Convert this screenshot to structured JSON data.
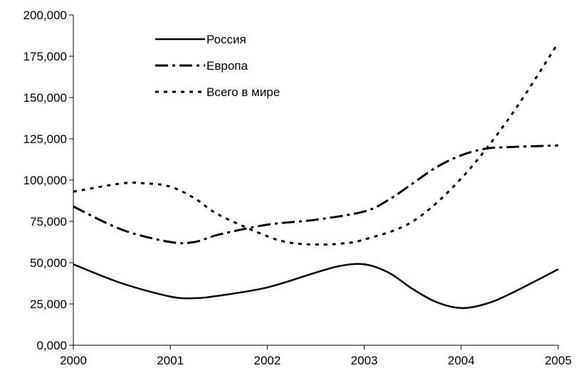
{
  "chart_data": {
    "type": "line",
    "x_ticks": [
      "2000",
      "2001",
      "2002",
      "2003",
      "2004",
      "2005"
    ],
    "y_ticks": [
      "0,000",
      "25,000",
      "50,000",
      "75,000",
      "100,000",
      "125,000",
      "150,000",
      "175,000",
      "200,000"
    ],
    "ylim": [
      0,
      200000
    ],
    "xlim": [
      2000,
      2005
    ],
    "grid": false,
    "legend_position": "top-left",
    "series": [
      {
        "name": "Россия",
        "style": "solid",
        "color": "#000000",
        "points": [
          [
            2000.0,
            49000
          ],
          [
            2000.5,
            37500
          ],
          [
            2001.0,
            29500
          ],
          [
            2001.25,
            28500
          ],
          [
            2001.5,
            30000
          ],
          [
            2002.0,
            35000
          ],
          [
            2002.5,
            44000
          ],
          [
            2002.75,
            48000
          ],
          [
            2003.0,
            49000
          ],
          [
            2003.25,
            44000
          ],
          [
            2003.5,
            34000
          ],
          [
            2003.75,
            26000
          ],
          [
            2004.0,
            22500
          ],
          [
            2004.25,
            25000
          ],
          [
            2004.5,
            31000
          ],
          [
            2005.0,
            46000
          ]
        ]
      },
      {
        "name": "Европа",
        "style": "dash-dot",
        "color": "#000000",
        "points": [
          [
            2000.0,
            84000
          ],
          [
            2000.5,
            70000
          ],
          [
            2001.0,
            62500
          ],
          [
            2001.25,
            62500
          ],
          [
            2001.5,
            67000
          ],
          [
            2002.0,
            73000
          ],
          [
            2002.5,
            76000
          ],
          [
            2003.0,
            81000
          ],
          [
            2003.25,
            88000
          ],
          [
            2003.5,
            98000
          ],
          [
            2003.75,
            108000
          ],
          [
            2004.0,
            115000
          ],
          [
            2004.25,
            119000
          ],
          [
            2004.5,
            120000
          ],
          [
            2005.0,
            121000
          ]
        ]
      },
      {
        "name": "Всего в мире",
        "style": "dotted",
        "color": "#000000",
        "points": [
          [
            2000.0,
            93000
          ],
          [
            2000.5,
            98000
          ],
          [
            2000.75,
            98000
          ],
          [
            2001.0,
            96000
          ],
          [
            2001.25,
            89000
          ],
          [
            2001.5,
            79000
          ],
          [
            2002.0,
            66000
          ],
          [
            2002.25,
            62000
          ],
          [
            2002.5,
            61000
          ],
          [
            2002.75,
            61500
          ],
          [
            2003.0,
            64000
          ],
          [
            2003.5,
            75000
          ],
          [
            2004.0,
            101000
          ],
          [
            2004.5,
            138000
          ],
          [
            2005.0,
            183000
          ]
        ]
      }
    ]
  }
}
